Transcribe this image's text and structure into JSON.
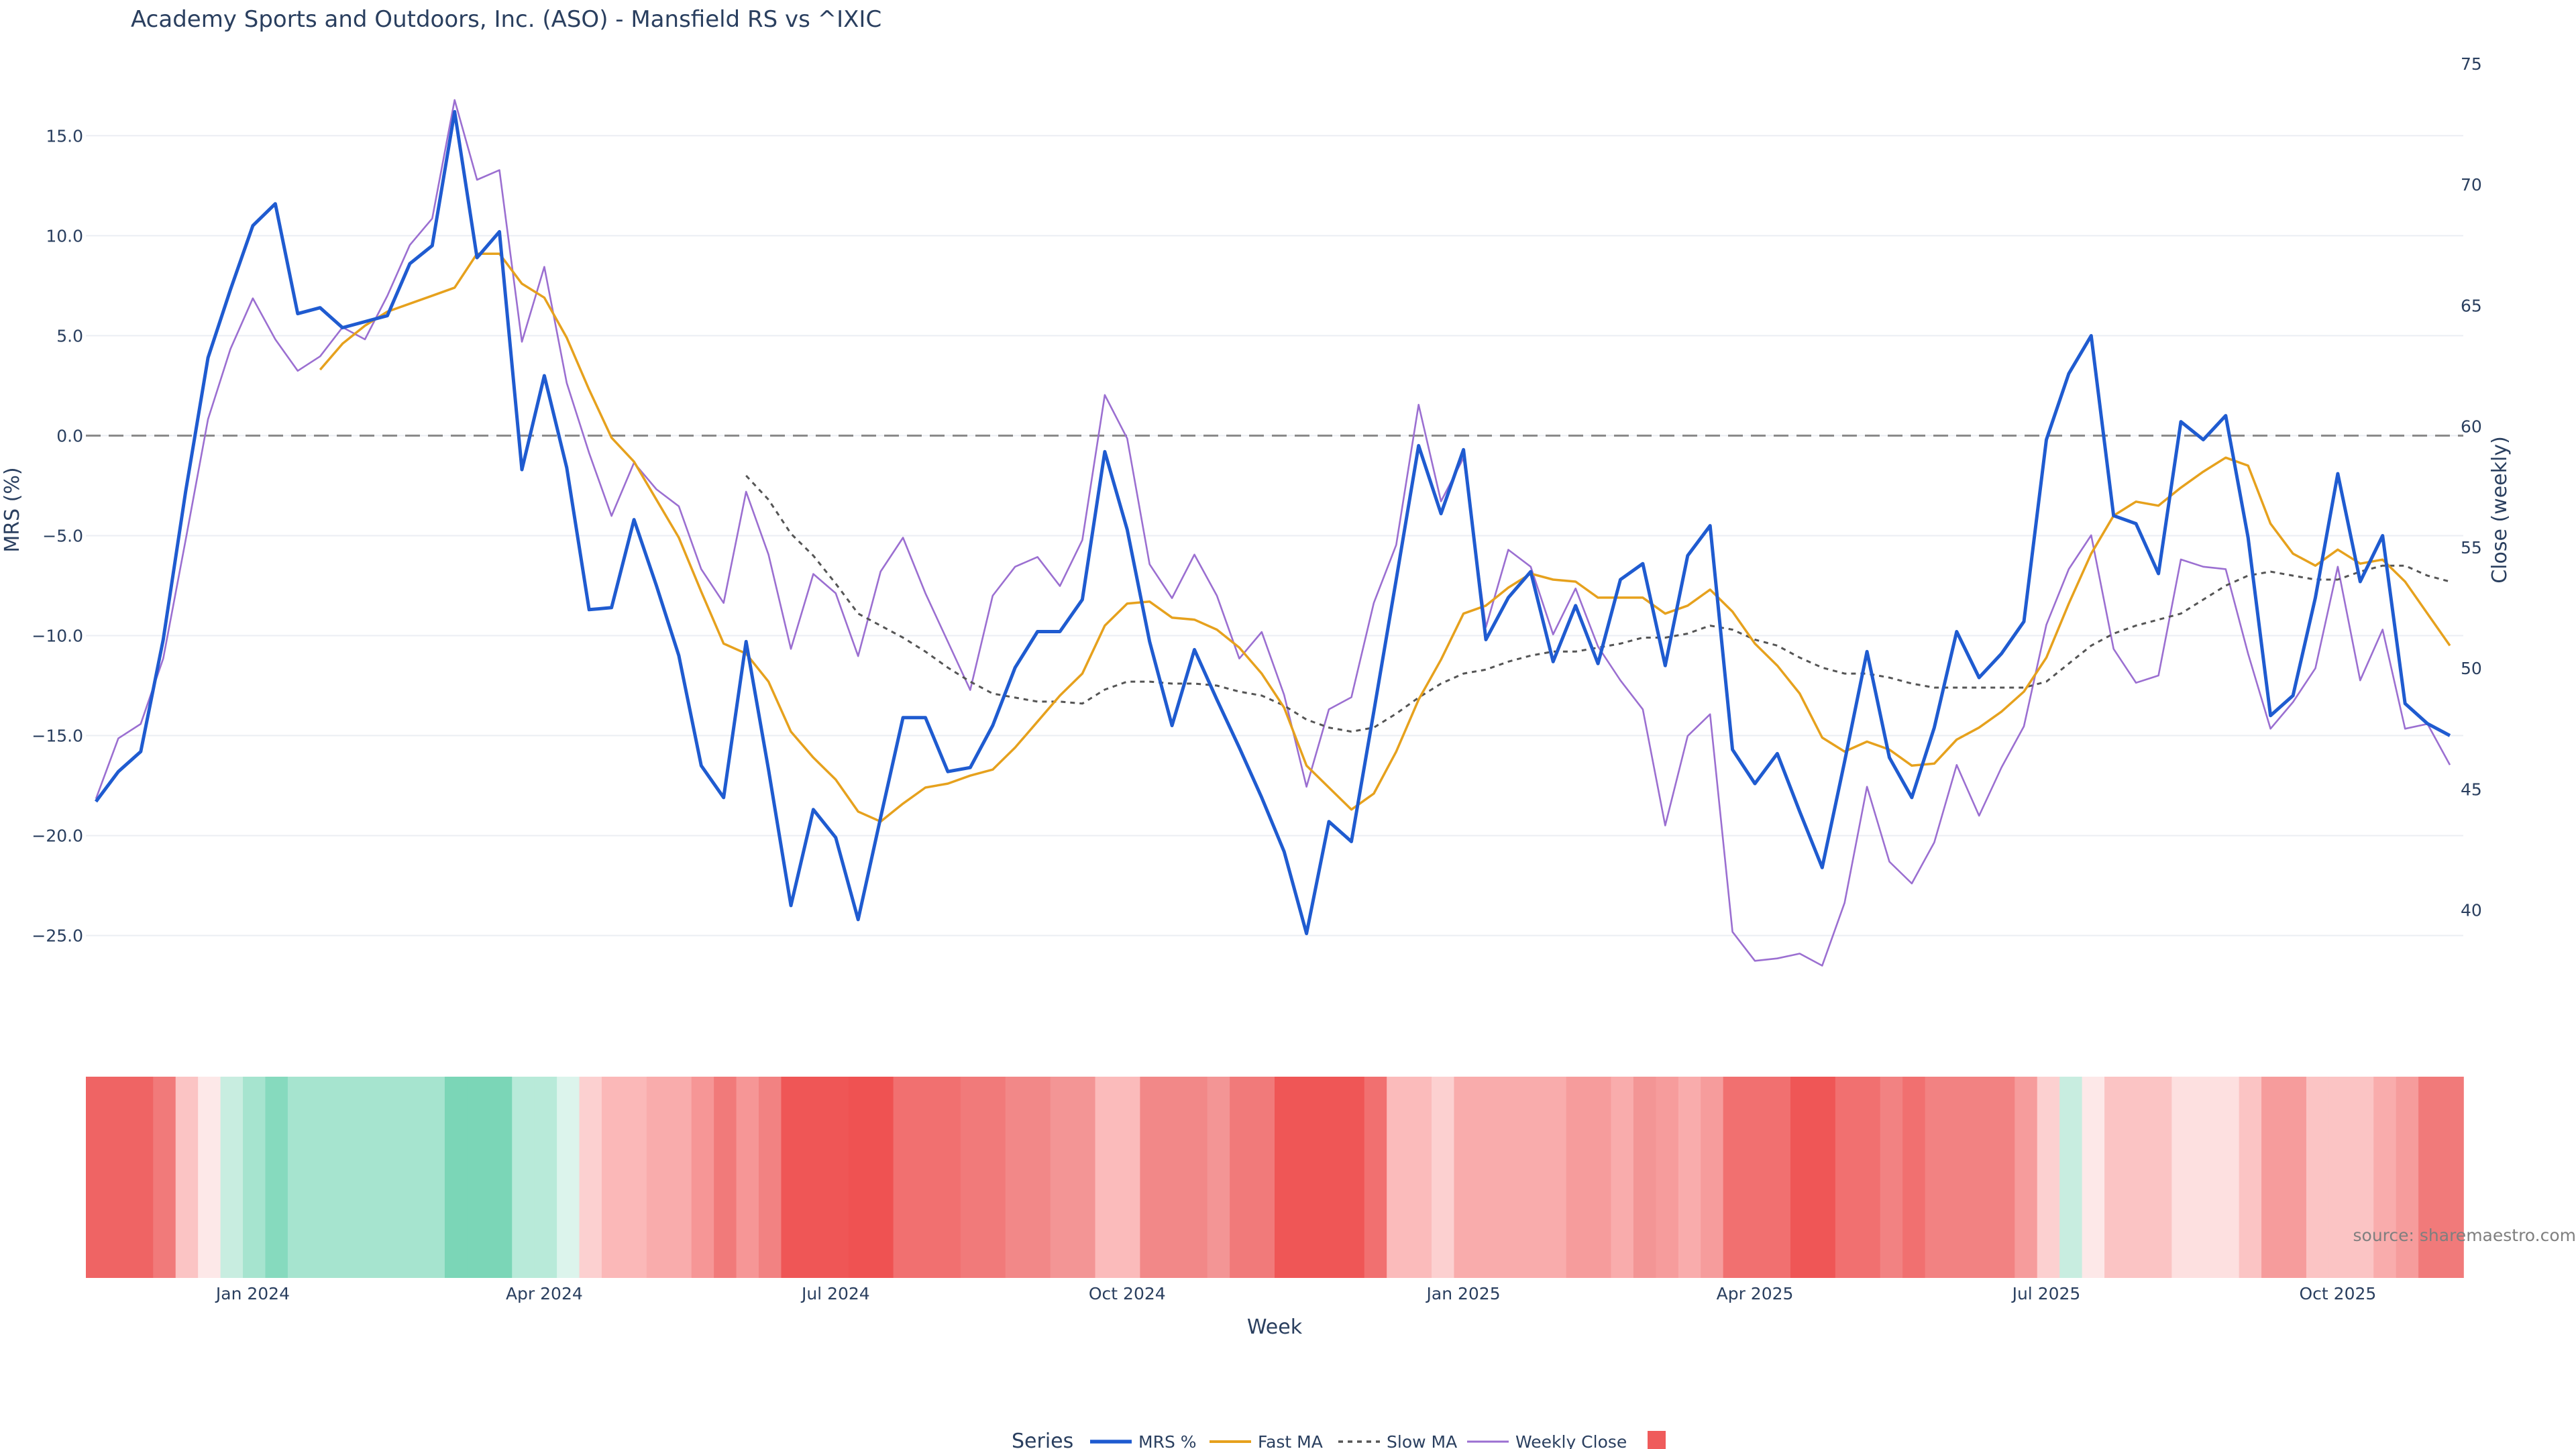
{
  "colors": {
    "mrs": "#1f5bd0",
    "fast": "#e6a11d",
    "slow": "#555555",
    "close": "#9b6fd1",
    "zero": "#888888",
    "grid": "#ebeef3",
    "legend_box": "#ef5b5b"
  },
  "chart_data": {
    "type": "line",
    "title": "Academy Sports and Outdoors, Inc. (ASO) - Mansfield RS vs ^IXIC",
    "xlabel": "Week",
    "ylabel_left": "MRS (%)",
    "ylabel_right": "Close (weekly)",
    "ylim_left": [
      -28.2,
      18.6
    ],
    "ylim_right": [
      36.3,
      75
    ],
    "yticks_left": [
      "15.0",
      "10.0",
      "5.0",
      "0.0",
      "−5.0",
      "−10.0",
      "−15.0",
      "−20.0",
      "−25.0"
    ],
    "yticks_left_values": [
      15,
      10,
      5,
      0,
      -5,
      -10,
      -15,
      -20,
      -25
    ],
    "yticks_right": [
      "75",
      "70",
      "65",
      "60",
      "55",
      "50",
      "45",
      "40"
    ],
    "yticks_right_values": [
      75,
      70,
      65,
      60,
      55,
      50,
      45,
      40
    ],
    "xticks": [
      "Jan 2024",
      "Apr 2024",
      "Jul 2024",
      "Oct 2024",
      "Jan 2025",
      "Apr 2025",
      "Jul 2025",
      "Oct 2025"
    ],
    "xticks_week_index": [
      7,
      20,
      33,
      46,
      61,
      74,
      87,
      100
    ],
    "zero_line": 0,
    "n_weeks": 106,
    "series": [
      {
        "name": "MRS %",
        "axis": "left",
        "values": [
          -18.3,
          -16.8,
          -15.8,
          -10.2,
          -2.8,
          3.9,
          7.3,
          10.5,
          11.6,
          6.1,
          6.4,
          5.4,
          5.7,
          6.0,
          8.6,
          9.5,
          16.2,
          8.9,
          10.2,
          -1.7,
          3.0,
          -1.6,
          -8.7,
          -8.6,
          -4.2,
          -7.5,
          -11.0,
          -16.5,
          -18.1,
          -10.3,
          -16.7,
          -23.5,
          -18.7,
          -20.1,
          -24.2,
          -19.1,
          -14.1,
          -14.1,
          -16.8,
          -16.6,
          -14.5,
          -11.6,
          -9.8,
          -9.8,
          -8.2,
          -0.8,
          -4.7,
          -10.3,
          -14.5,
          -10.7,
          -13.2,
          -15.6,
          -18.1,
          -20.8,
          -24.9,
          -19.3,
          -20.3,
          -13.8,
          -7.2,
          -0.5,
          -3.9,
          -0.7,
          -10.2,
          -8.1,
          -6.8,
          -11.3,
          -8.5,
          -11.4,
          -7.2,
          -6.4,
          -11.5,
          -6.0,
          -4.5,
          -15.7,
          -17.4,
          -15.9,
          -18.8,
          -21.6,
          -16.3,
          -10.8,
          -16.1,
          -18.1,
          -14.6,
          -9.8,
          -12.1,
          -10.9,
          -9.3,
          -0.2,
          3.1,
          5.0,
          -4.0,
          -4.4,
          -6.9,
          0.7,
          -0.2,
          1.0,
          -5.1,
          -14.0,
          -13.0,
          -8.1,
          -1.9,
          -7.3,
          -5.0,
          -13.4,
          -14.4,
          -15.0
        ]
      },
      {
        "name": "Fast MA",
        "axis": "left",
        "values": [
          null,
          null,
          null,
          null,
          null,
          null,
          null,
          null,
          null,
          null,
          3.3,
          4.6,
          5.5,
          6.2,
          6.6,
          7.0,
          7.4,
          9.1,
          9.1,
          7.6,
          6.9,
          4.9,
          2.3,
          -0.1,
          -1.3,
          -3.2,
          -5.1,
          -7.8,
          -10.4,
          -10.9,
          -12.3,
          -14.8,
          -16.1,
          -17.2,
          -18.8,
          -19.3,
          -18.4,
          -17.6,
          -17.4,
          -17.0,
          -16.7,
          -15.6,
          -14.3,
          -13.0,
          -11.9,
          -9.5,
          -8.4,
          -8.3,
          -9.1,
          -9.2,
          -9.7,
          -10.6,
          -11.9,
          -13.6,
          -16.5,
          -17.6,
          -18.7,
          -17.9,
          -15.8,
          -13.2,
          -11.2,
          -8.9,
          -8.5,
          -7.6,
          -6.9,
          -7.2,
          -7.3,
          -8.1,
          -8.1,
          -8.1,
          -8.9,
          -8.5,
          -7.7,
          -8.8,
          -10.4,
          -11.5,
          -12.9,
          -15.1,
          -15.8,
          -15.3,
          -15.7,
          -16.5,
          -16.4,
          -15.2,
          -14.6,
          -13.8,
          -12.8,
          -11.1,
          -8.4,
          -5.9,
          -4.0,
          -3.3,
          -3.5,
          -2.6,
          -1.8,
          -1.1,
          -1.5,
          -4.4,
          -5.9,
          -6.5,
          -5.7,
          -6.4,
          -6.2,
          -7.3,
          -8.9,
          -10.5
        ]
      },
      {
        "name": "Slow MA",
        "axis": "left",
        "values": [
          null,
          null,
          null,
          null,
          null,
          null,
          null,
          null,
          null,
          null,
          null,
          null,
          null,
          null,
          null,
          null,
          null,
          null,
          null,
          null,
          null,
          null,
          null,
          null,
          null,
          null,
          null,
          null,
          null,
          -2.0,
          -3.2,
          -4.9,
          -6.0,
          -7.4,
          -8.9,
          -9.5,
          -10.1,
          -10.8,
          -11.6,
          -12.3,
          -12.9,
          -13.1,
          -13.3,
          -13.3,
          -13.4,
          -12.7,
          -12.3,
          -12.3,
          -12.4,
          -12.4,
          -12.5,
          -12.8,
          -13.0,
          -13.5,
          -14.2,
          -14.6,
          -14.8,
          -14.6,
          -13.9,
          -13.1,
          -12.4,
          -11.9,
          -11.7,
          -11.3,
          -11.0,
          -10.8,
          -10.8,
          -10.6,
          -10.4,
          -10.1,
          -10.1,
          -9.9,
          -9.5,
          -9.7,
          -10.2,
          -10.5,
          -11.1,
          -11.6,
          -11.9,
          -11.9,
          -12.1,
          -12.4,
          -12.6,
          -12.6,
          -12.6,
          -12.6,
          -12.6,
          -12.3,
          -11.4,
          -10.5,
          -9.9,
          -9.5,
          -9.2,
          -8.9,
          -8.2,
          -7.5,
          -7.0,
          -6.8,
          -7.0,
          -7.2,
          -7.2,
          -6.8,
          -6.5,
          -6.5,
          -7.0,
          -7.3
        ]
      },
      {
        "name": "Weekly Close",
        "axis": "right",
        "values": [
          44.6,
          47.1,
          47.7,
          50.4,
          55.3,
          60.3,
          63.2,
          65.3,
          63.6,
          62.3,
          62.9,
          64.1,
          63.6,
          65.4,
          67.5,
          68.6,
          73.5,
          70.2,
          70.6,
          63.5,
          66.6,
          61.8,
          58.9,
          56.3,
          58.5,
          57.4,
          56.7,
          54.1,
          52.7,
          57.3,
          54.7,
          50.8,
          53.9,
          53.1,
          50.5,
          54.0,
          55.4,
          53.1,
          51.1,
          49.1,
          53.0,
          54.2,
          54.6,
          53.4,
          55.3,
          61.3,
          59.5,
          54.3,
          52.9,
          54.7,
          53.0,
          50.4,
          51.5,
          48.9,
          45.1,
          48.3,
          48.8,
          52.7,
          55.1,
          60.9,
          56.9,
          58.7,
          51.7,
          54.9,
          54.2,
          51.4,
          53.3,
          50.9,
          49.5,
          48.3,
          43.5,
          47.2,
          48.1,
          39.1,
          37.9,
          38.0,
          38.2,
          37.7,
          40.3,
          45.1,
          42.0,
          41.1,
          42.8,
          46.0,
          43.9,
          45.9,
          47.6,
          51.8,
          54.1,
          55.5,
          50.8,
          49.4,
          49.7,
          54.5,
          54.2,
          54.1,
          50.6,
          47.5,
          48.6,
          50.0,
          54.2,
          49.5,
          51.6,
          47.5,
          47.7,
          46.0
        ]
      }
    ],
    "heatmap": {
      "description": "weekly relative-strength band, one cell per week",
      "colors": [
        "#ef6464",
        "#ef6464",
        "#ef6464",
        "#f17a7a",
        "#fbc4c4",
        "#fde8e8",
        "#c8ede0",
        "#a6e4cf",
        "#86dabe",
        "#a6e4cf",
        "#a6e4cf",
        "#a6e4cf",
        "#a6e4cf",
        "#a6e4cf",
        "#a6e4cf",
        "#a6e4cf",
        "#7bd6b7",
        "#7bd6b7",
        "#7bd6b7",
        "#b8ead9",
        "#b8ead9",
        "#dcf4ec",
        "#fcd0d0",
        "#fbb8b8",
        "#fbb8b8",
        "#f9acac",
        "#f9acac",
        "#f69696",
        "#f17a7a",
        "#f69696",
        "#f28282",
        "#ef5656",
        "#ef5656",
        "#ef5656",
        "#ef5252",
        "#ef5252",
        "#f17070",
        "#f17070",
        "#f17070",
        "#f17a7a",
        "#f17a7a",
        "#f28888",
        "#f28888",
        "#f39595",
        "#f39595",
        "#fbbbbb",
        "#fbbbbb",
        "#f28888",
        "#f28888",
        "#f28888",
        "#f39595",
        "#f17a7a",
        "#f17a7a",
        "#ef5656",
        "#ef5656",
        "#ef5656",
        "#ef5656",
        "#f17070",
        "#fbbbbb",
        "#fbbbbb",
        "#fcd0d0",
        "#f9acac",
        "#f9acac",
        "#f9acac",
        "#f9acac",
        "#f9acac",
        "#f69c9c",
        "#f69c9c",
        "#f9acac",
        "#f39595",
        "#f69c9c",
        "#f9acac",
        "#f69c9c",
        "#f17070",
        "#f17070",
        "#f17070",
        "#ef5656",
        "#ef5656",
        "#f17070",
        "#f17070",
        "#f28282",
        "#f17070",
        "#f28282",
        "#f28282",
        "#f28282",
        "#f28282",
        "#f69c9c",
        "#fcd0d0",
        "#c8ede0",
        "#fde8e8",
        "#fbc4c4",
        "#fbc4c4",
        "#fbc4c4",
        "#fde0e0",
        "#fde0e0",
        "#fde0e0",
        "#fbc4c4",
        "#f69c9c",
        "#f69c9c",
        "#fbc4c4",
        "#fbc4c4",
        "#fbc4c4",
        "#f9acac",
        "#f69c9c",
        "#f17a7a",
        "#f17a7a"
      ]
    },
    "legend": {
      "title": "Series",
      "placement": "bottom-center",
      "items": [
        "MRS %",
        "Fast MA",
        "Slow MA",
        "Weekly Close"
      ]
    }
  },
  "source_note": "source: sharemaestro.com"
}
